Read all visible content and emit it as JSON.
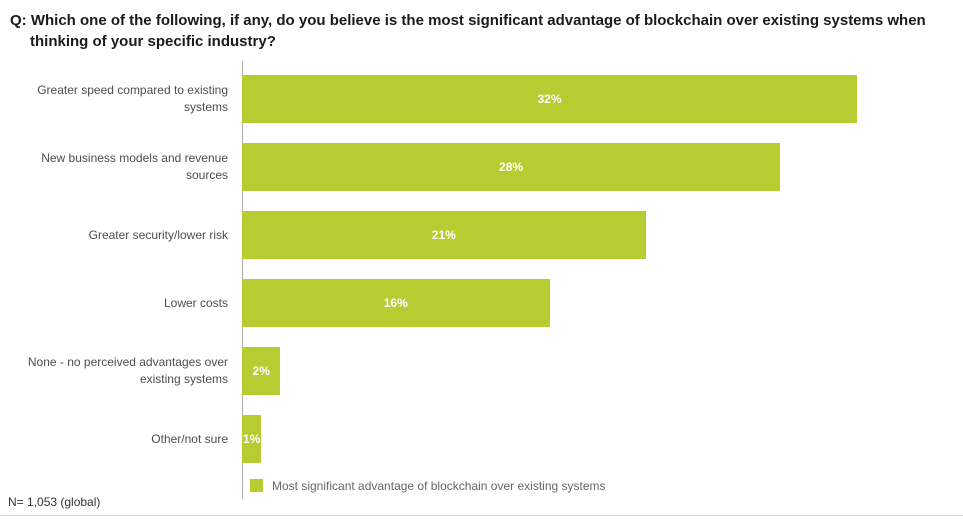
{
  "title": "Q: Which one of the following, if any, do you believe is the most significant advantage of blockchain over existing systems when thinking of your specific industry?",
  "chart_data": {
    "type": "bar",
    "orientation": "horizontal",
    "title": "Q: Which one of the following, if any, do you believe is the most significant advantage of blockchain over existing systems when thinking of your specific industry?",
    "categories": [
      "Greater speed compared to existing systems",
      "New business models and revenue sources",
      "Greater security/lower risk",
      "Lower costs",
      "None - no perceived advantages over existing systems",
      "Other/not sure"
    ],
    "values": [
      32,
      28,
      21,
      16,
      2,
      1
    ],
    "value_labels": [
      "32%",
      "28%",
      "21%",
      "16%",
      "2%",
      "1%"
    ],
    "xlabel": "",
    "ylabel": "",
    "xlim": [
      0,
      32
    ],
    "grid": false,
    "legend": [
      "Most significant advantage of blockchain over existing systems"
    ],
    "legend_position": "bottom",
    "bar_color": "#b7cc31"
  },
  "legend": {
    "label": "Most significant advantage of blockchain over existing systems"
  },
  "footer": {
    "note": "N= 1,053 (global)"
  },
  "colors": {
    "bar": "#b7cc31",
    "axis": "#a9adb2",
    "value_text": "#ffffff",
    "label_text": "#4d4d4d",
    "title_text": "#1a1a1a"
  }
}
